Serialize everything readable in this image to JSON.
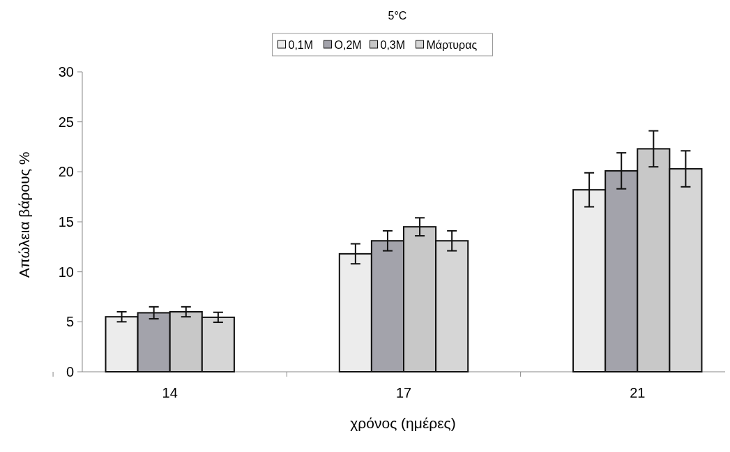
{
  "chart_data": {
    "type": "bar",
    "title": "5°C",
    "xlabel": "χρόνος (ημέρες)",
    "ylabel": "Απώλεια βάρους %",
    "categories": [
      "14",
      "17",
      "21"
    ],
    "series": [
      {
        "name": "0,1M",
        "color": "#ececec",
        "values": [
          5.5,
          11.8,
          18.2
        ],
        "errors": [
          0.5,
          1.0,
          1.7
        ]
      },
      {
        "name": "O,2M",
        "color": "#a3a3ab",
        "values": [
          5.9,
          13.1,
          20.1
        ],
        "errors": [
          0.6,
          1.0,
          1.8
        ]
      },
      {
        "name": "0,3M",
        "color": "#c8c8c8",
        "values": [
          6.0,
          14.5,
          22.3
        ],
        "errors": [
          0.5,
          0.9,
          1.8
        ]
      },
      {
        "name": "Μάρτυρας",
        "color": "#d6d6d6",
        "values": [
          5.45,
          13.1,
          20.3
        ],
        "errors": [
          0.5,
          1.0,
          1.8
        ]
      }
    ],
    "ylim": [
      0,
      30
    ],
    "yticks": [
      0,
      5,
      10,
      15,
      20,
      25,
      30
    ],
    "legend": "top",
    "grid": false
  }
}
